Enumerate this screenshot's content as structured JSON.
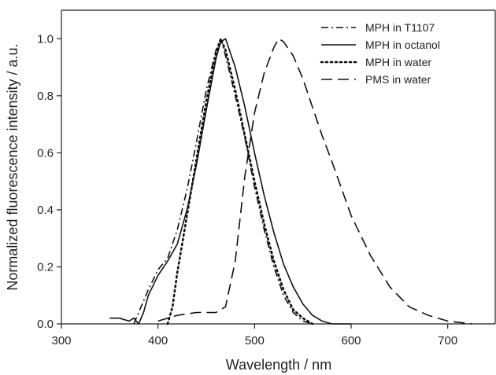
{
  "chart_data": {
    "type": "line",
    "title": "",
    "xlabel": "Wavelength / nm",
    "ylabel": "Normalized  fluorescence intensity / a.u.",
    "xlim": [
      300,
      750
    ],
    "ylim": [
      0,
      1.1
    ],
    "xticks": [
      300,
      400,
      500,
      600,
      700
    ],
    "yticks": [
      0.0,
      0.2,
      0.4,
      0.6,
      0.8,
      1.0
    ],
    "xtick_labels": [
      "300",
      "400",
      "500",
      "600",
      "700"
    ],
    "ytick_labels": [
      "0.0",
      "0.2",
      "0.4",
      "0.6",
      "0.8",
      "1.0"
    ],
    "grid": false,
    "legend_position": "top-right",
    "series": [
      {
        "name": "MPH in T1107",
        "style": "dash-dot",
        "x": [
          375,
          380,
          390,
          400,
          410,
          420,
          430,
          440,
          450,
          460,
          465,
          470,
          480,
          490,
          500,
          510,
          520,
          530,
          540,
          550,
          560
        ],
        "y": [
          0.0,
          0.04,
          0.12,
          0.19,
          0.23,
          0.33,
          0.47,
          0.64,
          0.82,
          0.96,
          1.0,
          0.94,
          0.8,
          0.65,
          0.48,
          0.33,
          0.2,
          0.1,
          0.04,
          0.01,
          0.0
        ]
      },
      {
        "name": "MPH in octanol",
        "style": "solid",
        "x": [
          350,
          360,
          370,
          375,
          380,
          385,
          390,
          400,
          410,
          420,
          430,
          440,
          450,
          460,
          465,
          470,
          480,
          490,
          500,
          510,
          520,
          530,
          540,
          550,
          560,
          570,
          580,
          590,
          600
        ],
        "y": [
          0.02,
          0.02,
          0.01,
          0.02,
          0.0,
          0.04,
          0.1,
          0.17,
          0.22,
          0.28,
          0.4,
          0.56,
          0.75,
          0.93,
          0.99,
          1.0,
          0.9,
          0.76,
          0.6,
          0.45,
          0.32,
          0.21,
          0.13,
          0.07,
          0.03,
          0.01,
          0.0,
          0.0,
          0.0
        ]
      },
      {
        "name": "MPH in water",
        "style": "dotted",
        "x": [
          410,
          415,
          420,
          430,
          440,
          450,
          460,
          465,
          470,
          480,
          490,
          500,
          510,
          520,
          530,
          540,
          550,
          560
        ],
        "y": [
          0.0,
          0.06,
          0.18,
          0.38,
          0.58,
          0.78,
          0.95,
          1.0,
          0.96,
          0.82,
          0.66,
          0.5,
          0.35,
          0.22,
          0.12,
          0.05,
          0.02,
          0.0
        ]
      },
      {
        "name": "PMS in water",
        "style": "dashed",
        "x": [
          400,
          420,
          440,
          460,
          470,
          480,
          490,
          500,
          510,
          520,
          525,
          530,
          540,
          550,
          560,
          570,
          580,
          600,
          620,
          640,
          660,
          680,
          700,
          725
        ],
        "y": [
          0.01,
          0.03,
          0.04,
          0.04,
          0.06,
          0.22,
          0.52,
          0.74,
          0.88,
          0.97,
          1.0,
          0.99,
          0.94,
          0.86,
          0.76,
          0.66,
          0.57,
          0.38,
          0.24,
          0.13,
          0.06,
          0.03,
          0.01,
          0.0
        ]
      }
    ]
  }
}
